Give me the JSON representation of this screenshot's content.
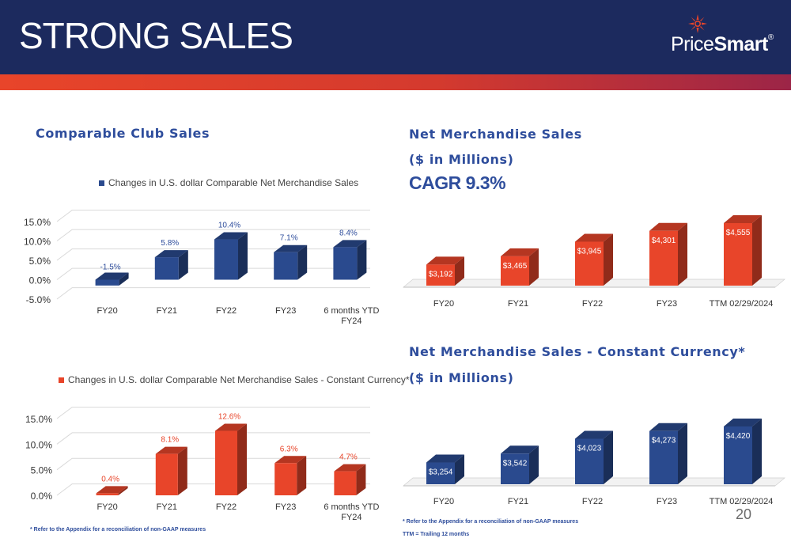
{
  "header": {
    "title": "STRONG SALES",
    "logo_text_light": "Price",
    "logo_text_bold": "Smart",
    "logo_mark": "starburst-logo-icon",
    "logo_registered": "®"
  },
  "colors": {
    "navy": "#1c2a5e",
    "blue": "#2a4a8e",
    "red": "#e8452a",
    "heading_blue": "#2e4d9c"
  },
  "headings": {
    "comparable_club_sales": "Comparable Club Sales",
    "net_merch_sales": "Net Merchandise Sales",
    "net_merch_sales_units": "($ in Millions)",
    "cagr": "CAGR 9.3%",
    "net_merch_cc": "Net Merchandise Sales - Constant Currency*",
    "net_merch_cc_units": "($ in Millions)"
  },
  "footnotes": {
    "left": "* Refer to the Appendix for a reconciliation of non-GAAP measures",
    "right": "* Refer to the Appendix for a reconciliation of non-GAAP measures",
    "ttm": "TTM = Trailing 12 months"
  },
  "page_number": "20",
  "chart_data": [
    {
      "id": "comp_usd",
      "type": "bar",
      "legend": "Changes in U.S. dollar Comparable Net Merchandise Sales",
      "categories": [
        "FY20",
        "FY21",
        "FY22",
        "FY23",
        "6 months YTD FY24"
      ],
      "category_lines": [
        [
          "FY20"
        ],
        [
          "FY21"
        ],
        [
          "FY22"
        ],
        [
          "FY23"
        ],
        [
          "6 months YTD",
          "FY24"
        ]
      ],
      "values": [
        -1.5,
        5.8,
        10.4,
        7.1,
        8.4
      ],
      "labels": [
        "-1.5%",
        "5.8%",
        "10.4%",
        "7.1%",
        "8.4%"
      ],
      "yticks": [
        "15.0%",
        "10.0%",
        "5.0%",
        "0.0%",
        "-5.0%"
      ],
      "ytick_values": [
        15,
        10,
        5,
        0,
        -5
      ],
      "ylim": [
        -5,
        15
      ],
      "color": "#2a4a8e",
      "legend_color": "#2a4a8e"
    },
    {
      "id": "comp_cc",
      "type": "bar",
      "legend": "Changes in U.S. dollar Comparable Net Merchandise Sales - Constant Currency*",
      "categories": [
        "FY20",
        "FY21",
        "FY22",
        "FY23",
        "6 months YTD FY24"
      ],
      "category_lines": [
        [
          "FY20"
        ],
        [
          "FY21"
        ],
        [
          "FY22"
        ],
        [
          "FY23"
        ],
        [
          "6 months YTD",
          "FY24"
        ]
      ],
      "values": [
        0.4,
        8.1,
        12.6,
        6.3,
        4.7
      ],
      "labels": [
        "0.4%",
        "8.1%",
        "12.6%",
        "6.3%",
        "4.7%"
      ],
      "yticks": [
        "15.0%",
        "10.0%",
        "5.0%",
        "0.0%"
      ],
      "ytick_values": [
        15,
        10,
        5,
        0
      ],
      "ylim": [
        0,
        15
      ],
      "color": "#e8452a",
      "legend_color": "#e8452a"
    },
    {
      "id": "nms",
      "type": "bar",
      "categories": [
        "FY20",
        "FY21",
        "FY22",
        "FY23",
        "TTM 02/29/2024"
      ],
      "values": [
        3192,
        3465,
        3945,
        4301,
        4555
      ],
      "labels": [
        "$3,192",
        "$3,465",
        "$3,945",
        "$4,301",
        "$4,555"
      ],
      "color": "#e8452a"
    },
    {
      "id": "nms_cc",
      "type": "bar",
      "categories": [
        "FY20",
        "FY21",
        "FY22",
        "FY23",
        "TTM 02/29/2024"
      ],
      "values": [
        3254,
        3542,
        4023,
        4273,
        4420
      ],
      "labels": [
        "$3,254",
        "$3,542",
        "$4,023",
        "$4,273",
        "$4,420"
      ],
      "color": "#2a4a8e"
    }
  ]
}
